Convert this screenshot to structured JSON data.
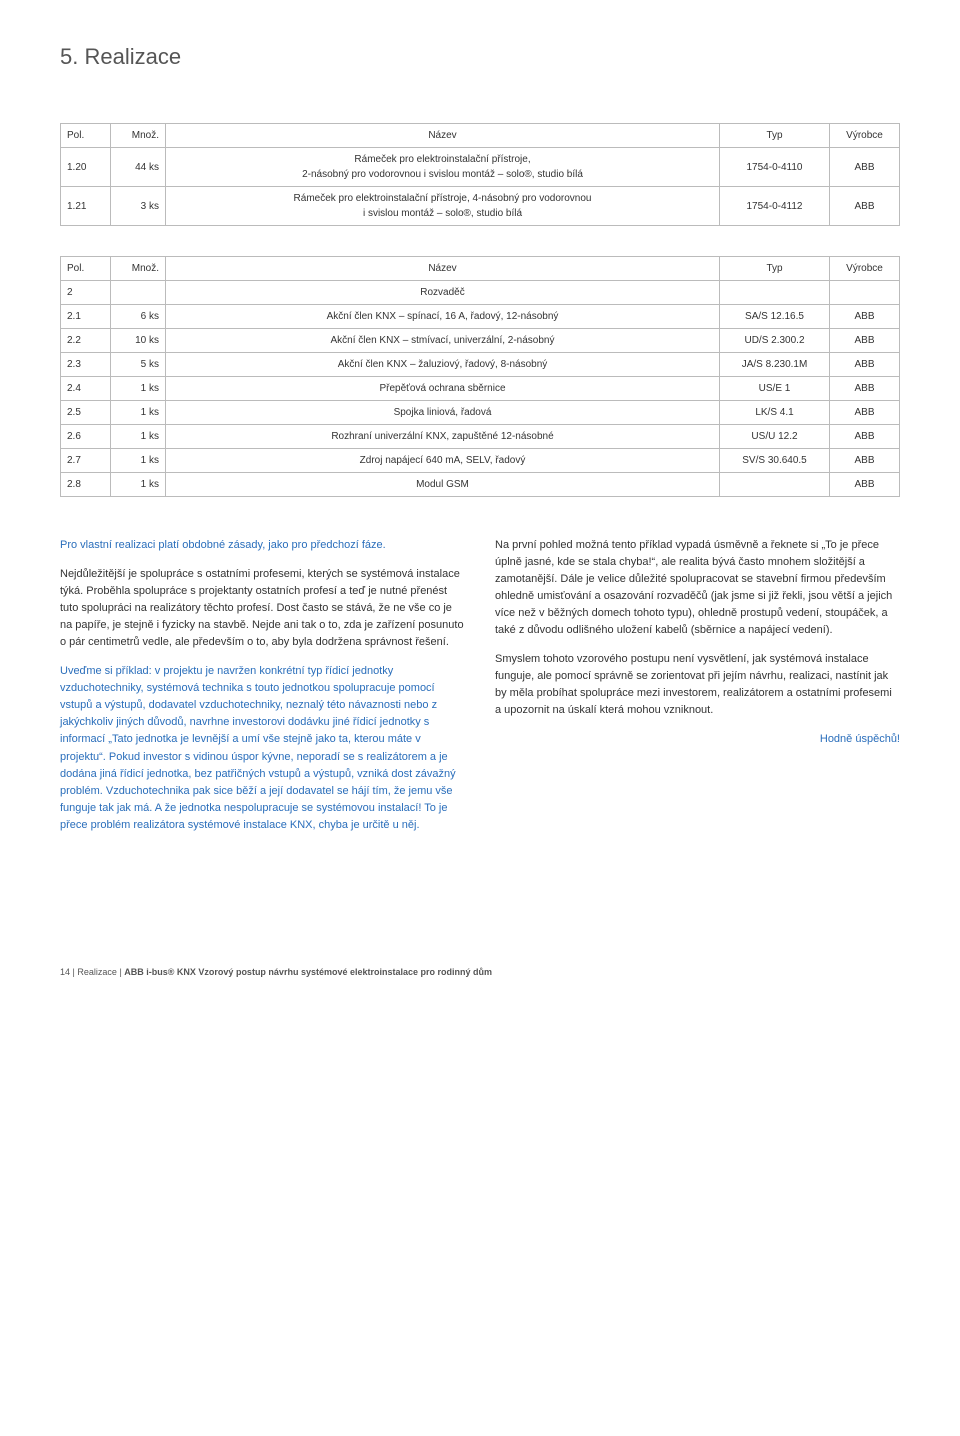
{
  "heading": "5. Realizace",
  "table1": {
    "headers": {
      "pol": "Pol.",
      "mnoz": "Množ.",
      "nazev": "Název",
      "typ": "Typ",
      "vyrobce": "Výrobce"
    },
    "rows": [
      {
        "pol": "1.20",
        "mnoz": "44 ks",
        "nazev": "Rámeček pro elektroinstalační přístroje,\n2-násobný pro vodorovnou i svislou montáž – solo®, studio bílá",
        "typ": "1754-0-4110",
        "vyrobce": "ABB"
      },
      {
        "pol": "1.21",
        "mnoz": "3 ks",
        "nazev": "Rámeček pro elektroinstalační přístroje, 4-násobný pro vodorovnou\ni svislou montáž – solo®, studio bílá",
        "typ": "1754-0-4112",
        "vyrobce": "ABB"
      }
    ]
  },
  "table2": {
    "headers": {
      "pol": "Pol.",
      "mnoz": "Množ.",
      "nazev": "Název",
      "typ": "Typ",
      "vyrobce": "Výrobce"
    },
    "sectionRow": {
      "pol": "2",
      "nazev": "Rozvaděč"
    },
    "rows": [
      {
        "pol": "2.1",
        "mnoz": "6 ks",
        "nazev": "Akční člen KNX – spínací, 16 A, řadový, 12-násobný",
        "typ": "SA/S 12.16.5",
        "vyrobce": "ABB"
      },
      {
        "pol": "2.2",
        "mnoz": "10 ks",
        "nazev": "Akční člen KNX – stmívací, univerzální, 2-násobný",
        "typ": "UD/S 2.300.2",
        "vyrobce": "ABB"
      },
      {
        "pol": "2.3",
        "mnoz": "5 ks",
        "nazev": "Akční člen KNX – žaluziový, řadový, 8-násobný",
        "typ": "JA/S 8.230.1M",
        "vyrobce": "ABB"
      },
      {
        "pol": "2.4",
        "mnoz": "1 ks",
        "nazev": "Přepěťová ochrana sběrnice",
        "typ": "US/E 1",
        "vyrobce": "ABB"
      },
      {
        "pol": "2.5",
        "mnoz": "1 ks",
        "nazev": "Spojka liniová, řadová",
        "typ": "LK/S 4.1",
        "vyrobce": "ABB"
      },
      {
        "pol": "2.6",
        "mnoz": "1 ks",
        "nazev": "Rozhraní univerzální KNX, zapuštěné 12-násobné",
        "typ": "US/U 12.2",
        "vyrobce": "ABB"
      },
      {
        "pol": "2.7",
        "mnoz": "1 ks",
        "nazev": "Zdroj napájecí 640 mA, SELV, řadový",
        "typ": "SV/S 30.640.5",
        "vyrobce": "ABB"
      },
      {
        "pol": "2.8",
        "mnoz": "1 ks",
        "nazev": "Modul GSM",
        "typ": "",
        "vyrobce": "ABB"
      }
    ]
  },
  "left": {
    "p1": "Pro vlastní realizaci platí obdobné zásady, jako pro předchozí fáze.",
    "p2": "Nejdůležitější je spolupráce s ostatními profesemi, kterých se systémová instalace týká. Proběhla spolupráce s projektanty ostatních profesí a teď je nutné přenést tuto spolupráci na realizátory těchto profesí. Dost často se stává, že ne vše co je na papíře, je stejně i fyzicky na stavbě. Nejde ani tak o to, zda je zařízení posunuto o pár centimetrů vedle, ale především o to, aby byla dodržena správnost řešení.",
    "p3": "Uveďme si příklad: v projektu je navržen konkrétní typ řídicí jednotky vzduchotechniky, systémová technika s touto jednotkou spolupracuje pomocí vstupů a výstupů, dodavatel vzduchotechniky, neznalý této návaznosti nebo z jakýchkoliv jiných důvodů, navrhne investorovi dodávku jiné řídicí jednotky s informací „Tato jednotka je levnější a umí vše stejně jako ta, kterou máte v projektu“. Pokud investor s vidinou úspor kývne, neporadí se s realizátorem a je dodána jiná řídicí jednotka, bez patřičných vstupů a výstupů, vzniká dost závažný problém. Vzduchotechnika pak sice běží a její dodavatel se hájí tím, že jemu vše funguje tak jak má. A že jednotka nespolupracuje se systémovou instalací! To je přece problém realizátora systémové instalace KNX, chyba je určitě u něj."
  },
  "right": {
    "p1": "Na první pohled možná tento příklad vypadá úsměvně a řeknete si „To je přece úplně jasné, kde se stala chyba!“, ale realita bývá často mnohem složitější a zamotanější. Dále je velice důležité spolupracovat se stavební firmou především ohledně umisťování a osazování rozvaděčů (jak jsme si již řekli, jsou větší a jejich více než v běžných domech tohoto typu), ohledně prostupů vedení, stoupáček, a také z důvodu odlišného uložení kabelů (sběrnice a napájecí vedení).",
    "p2": "Smyslem tohoto vzorového postupu není vysvětlení, jak systémová instalace funguje, ale pomocí správně se zorientovat při jejím návrhu, realizaci, nastínit jak by měla probíhat spolupráce mezi investorem, realizátorem a ostatními profesemi a upozornit na úskalí která mohou vzniknout.",
    "p3": "Hodně úspěchů!"
  },
  "footer": {
    "page": "14",
    "sep": "|",
    "section": "Realizace",
    "sep2": "|",
    "title": "ABB i-bus® KNX Vzorový postup návrhu systémové elektroinstalace pro rodinný dům"
  }
}
